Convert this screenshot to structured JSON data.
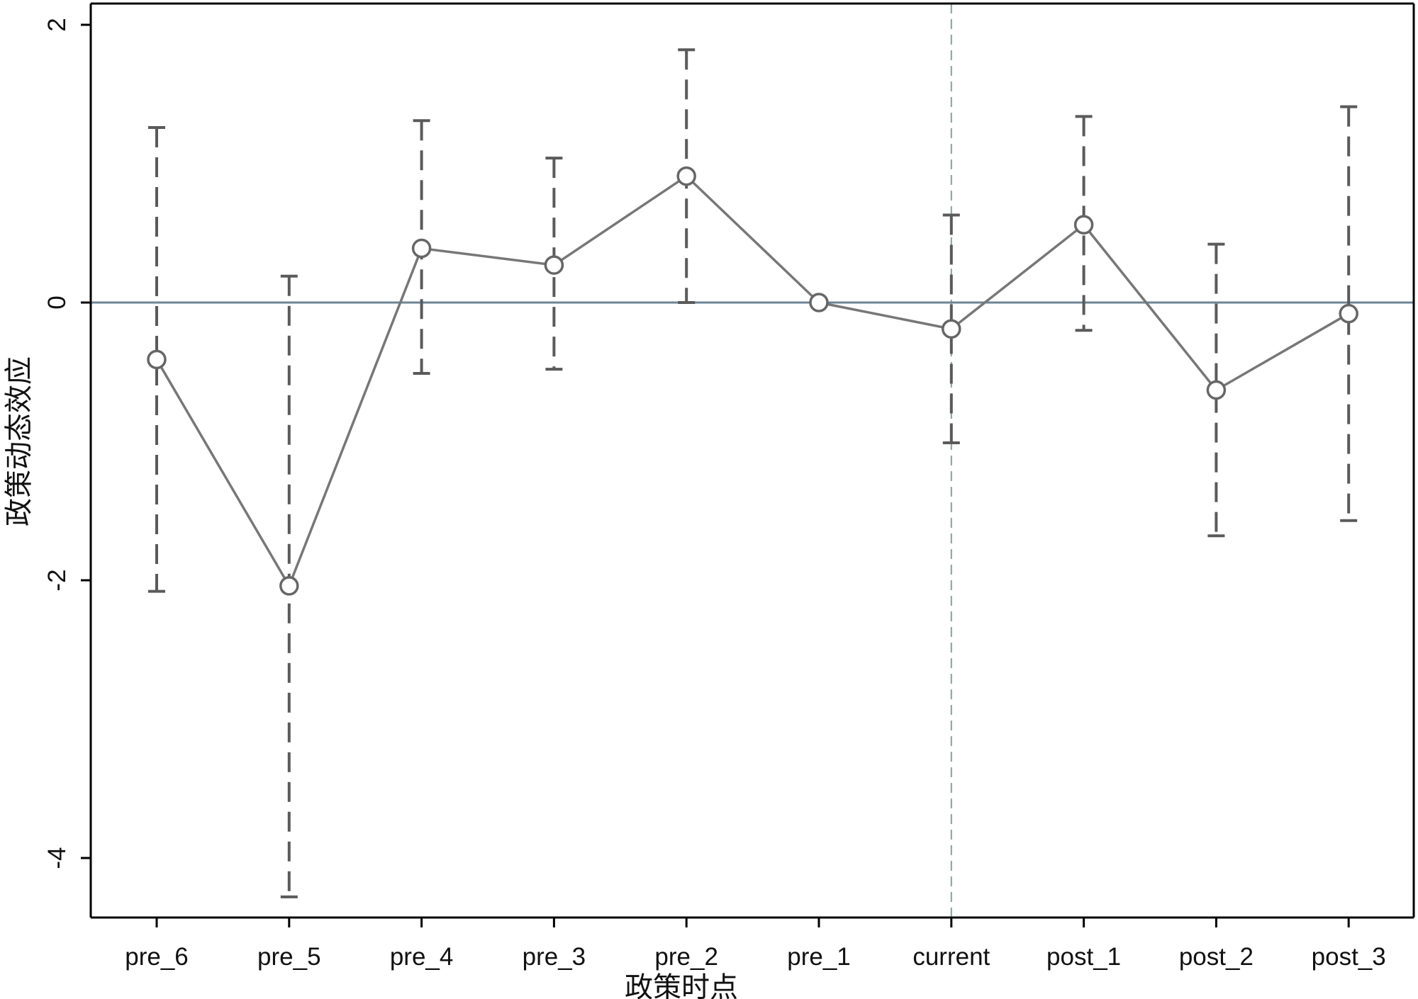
{
  "chart_data": {
    "type": "line",
    "xlabel": "政策时点",
    "ylabel": "政策动态效应",
    "categories": [
      "pre_6",
      "pre_5",
      "pre_4",
      "pre_3",
      "pre_2",
      "pre_1",
      "current",
      "post_1",
      "post_2",
      "post_3"
    ],
    "y_ticks": [
      2,
      0,
      -2,
      -4
    ],
    "y_tick_labels": [
      "2",
      "0",
      "-2",
      "-4"
    ],
    "ylim": [
      -4.45,
      2.1
    ],
    "reference_line_y": 0,
    "reference_line_x": "current",
    "grid": false,
    "series": [
      {
        "values": [
          -0.41,
          -2.04,
          0.39,
          0.27,
          0.91,
          0.0,
          -0.19,
          0.56,
          -0.63,
          -0.08
        ],
        "ci_lower": [
          -2.08,
          -4.28,
          -0.51,
          -0.48,
          0.0,
          0.0,
          -1.01,
          -0.2,
          -1.68,
          -1.57
        ],
        "ci_upper": [
          1.26,
          0.19,
          1.31,
          1.04,
          1.82,
          0.0,
          0.63,
          1.34,
          0.42,
          1.41
        ]
      }
    ],
    "colors": {
      "line": "#777777",
      "marker": "#666666",
      "ci": "#5a5a5a",
      "zero_line": "#6e8596",
      "vertical_line": "#8aa098",
      "frame": "#000000"
    }
  }
}
